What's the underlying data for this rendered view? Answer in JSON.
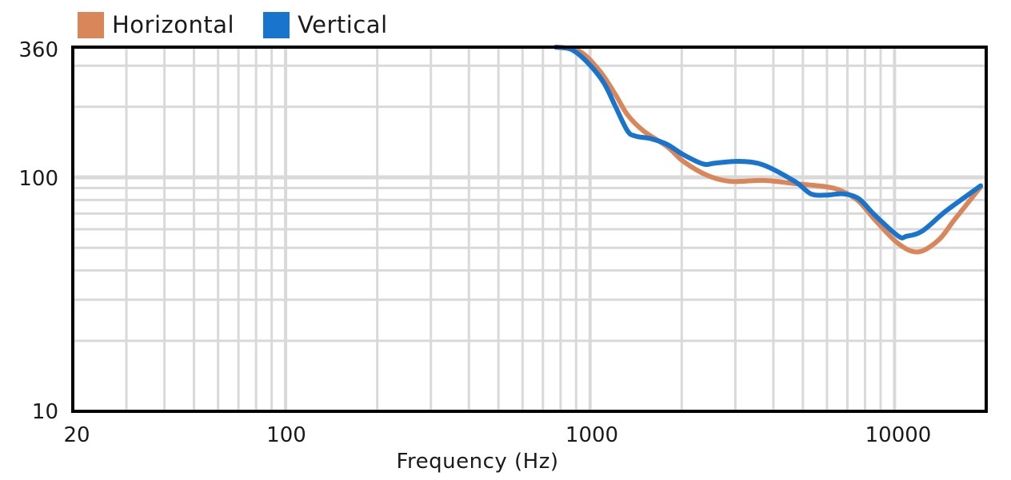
{
  "legend": {
    "items": [
      {
        "label": "Horizontal",
        "color": "#D8865A"
      },
      {
        "label": "Vertical",
        "color": "#1874CD"
      }
    ]
  },
  "axes": {
    "x_title": "Frequency (Hz)",
    "x_ticks": [
      "20",
      "100",
      "1000",
      "10000"
    ],
    "y_ticks": [
      "360",
      "100",
      "10"
    ]
  },
  "chart_data": {
    "type": "line",
    "title": "",
    "xlabel": "Frequency (Hz)",
    "ylabel": "",
    "xscale": "log",
    "yscale": "log",
    "xlim": [
      20,
      20000
    ],
    "ylim": [
      10,
      360
    ],
    "x_tick_labels": [
      20,
      100,
      1000,
      10000
    ],
    "y_tick_labels": [
      10,
      100,
      360
    ],
    "grid": true,
    "legend_position": "top-left",
    "series": [
      {
        "name": "Horizontal",
        "color": "#D8865A",
        "x": [
          772,
          925,
          1075,
          1213,
          1327,
          1497,
          1794,
          2024,
          2424,
          2900,
          3699,
          4707,
          5991,
          6760,
          7627,
          8605,
          10300,
          11970,
          13960,
          15750,
          19180
        ],
        "values": [
          360,
          345,
          285,
          225,
          185,
          158,
          135,
          117,
          102,
          96,
          97,
          94,
          91,
          87,
          79,
          66,
          52,
          48,
          54,
          66,
          91
        ]
      },
      {
        "name": "Vertical",
        "color": "#1874CD",
        "x": [
          772,
          871,
          982,
          1108,
          1213,
          1327,
          1410,
          1590,
          1794,
          2024,
          2353,
          2576,
          3087,
          3699,
          4707,
          5310,
          5991,
          6760,
          7627,
          8605,
          10300,
          10940,
          12350,
          14800,
          19180
        ],
        "values": [
          360,
          351,
          309,
          254,
          200,
          158,
          150,
          146,
          138,
          125,
          114,
          115,
          117,
          113,
          96,
          85,
          84,
          85,
          81,
          69,
          56,
          56,
          59,
          72,
          92
        ]
      }
    ]
  }
}
